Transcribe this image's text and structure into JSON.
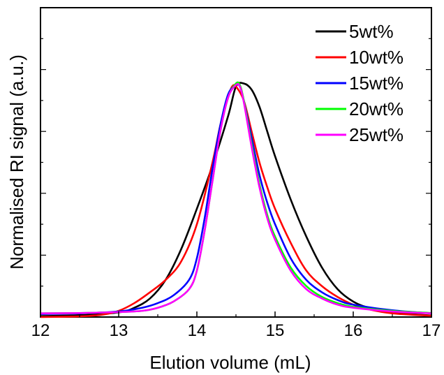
{
  "chart_data": {
    "type": "line",
    "title": "",
    "xlabel": "Elution volume (mL)",
    "ylabel": "Normalised RI signal (a.u.)",
    "xlim": [
      12,
      17
    ],
    "ylim": [
      0,
      1.0
    ],
    "x_ticks": [
      "12",
      "13",
      "14",
      "15",
      "16",
      "17"
    ],
    "grid": false,
    "legend_position": "top-right",
    "series": [
      {
        "name": "5wt%",
        "color": "#000000",
        "points": [
          [
            12.0,
            0.003
          ],
          [
            12.5,
            0.006
          ],
          [
            13.0,
            0.015
          ],
          [
            13.2,
            0.03
          ],
          [
            13.4,
            0.06
          ],
          [
            13.6,
            0.12
          ],
          [
            13.8,
            0.22
          ],
          [
            14.0,
            0.35
          ],
          [
            14.2,
            0.49
          ],
          [
            14.4,
            0.65
          ],
          [
            14.5,
            0.745
          ],
          [
            14.6,
            0.755
          ],
          [
            14.7,
            0.735
          ],
          [
            14.8,
            0.68
          ],
          [
            14.9,
            0.6
          ],
          [
            15.0,
            0.52
          ],
          [
            15.2,
            0.38
          ],
          [
            15.4,
            0.26
          ],
          [
            15.6,
            0.16
          ],
          [
            15.8,
            0.09
          ],
          [
            16.0,
            0.05
          ],
          [
            16.2,
            0.03
          ],
          [
            16.5,
            0.015
          ],
          [
            17.0,
            0.005
          ]
        ]
      },
      {
        "name": "10wt%",
        "color": "#ff0000",
        "points": [
          [
            12.0,
            0.0
          ],
          [
            12.5,
            0.002
          ],
          [
            12.8,
            0.008
          ],
          [
            13.0,
            0.02
          ],
          [
            13.2,
            0.045
          ],
          [
            13.4,
            0.08
          ],
          [
            13.6,
            0.12
          ],
          [
            13.8,
            0.18
          ],
          [
            14.0,
            0.3
          ],
          [
            14.2,
            0.5
          ],
          [
            14.3,
            0.62
          ],
          [
            14.4,
            0.71
          ],
          [
            14.45,
            0.745
          ],
          [
            14.5,
            0.745
          ],
          [
            14.6,
            0.7
          ],
          [
            14.7,
            0.6
          ],
          [
            14.8,
            0.5
          ],
          [
            14.9,
            0.42
          ],
          [
            15.0,
            0.35
          ],
          [
            15.2,
            0.24
          ],
          [
            15.4,
            0.15
          ],
          [
            15.6,
            0.1
          ],
          [
            15.8,
            0.065
          ],
          [
            16.0,
            0.04
          ],
          [
            16.2,
            0.025
          ],
          [
            16.5,
            0.012
          ],
          [
            17.0,
            0.004
          ]
        ]
      },
      {
        "name": "15wt%",
        "color": "#0000ff",
        "points": [
          [
            12.0,
            0.01
          ],
          [
            12.5,
            0.012
          ],
          [
            13.0,
            0.018
          ],
          [
            13.3,
            0.03
          ],
          [
            13.5,
            0.045
          ],
          [
            13.7,
            0.07
          ],
          [
            13.9,
            0.12
          ],
          [
            14.0,
            0.19
          ],
          [
            14.1,
            0.32
          ],
          [
            14.2,
            0.48
          ],
          [
            14.3,
            0.62
          ],
          [
            14.4,
            0.72
          ],
          [
            14.5,
            0.75
          ],
          [
            14.55,
            0.745
          ],
          [
            14.6,
            0.7
          ],
          [
            14.7,
            0.58
          ],
          [
            14.8,
            0.46
          ],
          [
            14.9,
            0.37
          ],
          [
            15.0,
            0.3
          ],
          [
            15.2,
            0.19
          ],
          [
            15.4,
            0.12
          ],
          [
            15.6,
            0.08
          ],
          [
            15.8,
            0.055
          ],
          [
            16.0,
            0.04
          ],
          [
            16.5,
            0.022
          ],
          [
            17.0,
            0.012
          ]
        ]
      },
      {
        "name": "20wt%",
        "color": "#00ff00",
        "points": [
          [
            12.0,
            0.012
          ],
          [
            12.5,
            0.013
          ],
          [
            13.0,
            0.016
          ],
          [
            13.3,
            0.02
          ],
          [
            13.5,
            0.03
          ],
          [
            13.7,
            0.05
          ],
          [
            13.9,
            0.09
          ],
          [
            14.0,
            0.15
          ],
          [
            14.1,
            0.28
          ],
          [
            14.2,
            0.44
          ],
          [
            14.3,
            0.6
          ],
          [
            14.4,
            0.71
          ],
          [
            14.5,
            0.755
          ],
          [
            14.55,
            0.75
          ],
          [
            14.6,
            0.7
          ],
          [
            14.7,
            0.56
          ],
          [
            14.8,
            0.43
          ],
          [
            14.9,
            0.33
          ],
          [
            15.0,
            0.26
          ],
          [
            15.2,
            0.16
          ],
          [
            15.4,
            0.1
          ],
          [
            15.6,
            0.065
          ],
          [
            15.8,
            0.045
          ],
          [
            16.0,
            0.033
          ],
          [
            16.5,
            0.02
          ],
          [
            17.0,
            0.013
          ]
        ]
      },
      {
        "name": "25wt%",
        "color": "#ff00ff",
        "points": [
          [
            12.0,
            0.012
          ],
          [
            12.5,
            0.013
          ],
          [
            13.0,
            0.016
          ],
          [
            13.3,
            0.02
          ],
          [
            13.5,
            0.03
          ],
          [
            13.7,
            0.05
          ],
          [
            13.9,
            0.09
          ],
          [
            14.0,
            0.15
          ],
          [
            14.1,
            0.28
          ],
          [
            14.2,
            0.44
          ],
          [
            14.3,
            0.6
          ],
          [
            14.4,
            0.71
          ],
          [
            14.5,
            0.75
          ],
          [
            14.55,
            0.745
          ],
          [
            14.6,
            0.695
          ],
          [
            14.7,
            0.55
          ],
          [
            14.8,
            0.42
          ],
          [
            14.9,
            0.32
          ],
          [
            15.0,
            0.25
          ],
          [
            15.2,
            0.15
          ],
          [
            15.4,
            0.09
          ],
          [
            15.6,
            0.06
          ],
          [
            15.8,
            0.04
          ],
          [
            16.0,
            0.03
          ],
          [
            16.5,
            0.018
          ],
          [
            17.0,
            0.012
          ]
        ]
      }
    ]
  }
}
